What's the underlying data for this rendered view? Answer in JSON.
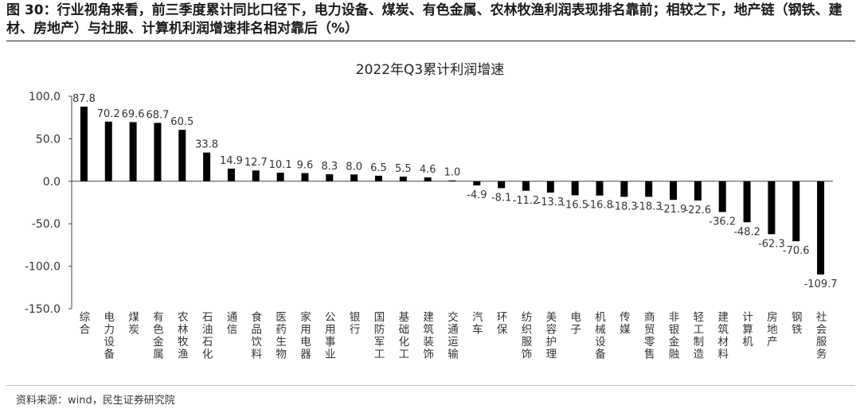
{
  "figure": {
    "title": "图 30：行业视角来看，前三季度累计同比口径下，电力设备、煤炭、有色金属、农林牧渔利润表现排名靠前；相较之下，地产链（钢铁、建材、房地产）与社服、计算机利润增速排名相对靠后（%）",
    "source": "资料来源：wind，民生证券研究院"
  },
  "chart_data": {
    "type": "bar",
    "title": "2022年Q3累计利润增速",
    "xlabel": "",
    "ylabel": "",
    "ylim": [
      -150,
      100
    ],
    "yticks": [
      100,
      50,
      0,
      -50,
      -100,
      -150
    ],
    "ytick_labels": [
      "100.0",
      "50.0",
      "0.0",
      "-50.0",
      "-100.0",
      "-150.0"
    ],
    "grid": false,
    "legend": "none",
    "bar_color": "#000000",
    "categories": [
      "综合",
      "电力设备",
      "煤炭",
      "有色金属",
      "农林牧渔",
      "石油石化",
      "通信",
      "食品饮料",
      "医药生物",
      "家用电器",
      "公用事业",
      "银行",
      "国防军工",
      "基础化工",
      "建筑装饰",
      "交通运输",
      "汽车",
      "环保",
      "纺织服饰",
      "美容护理",
      "电子",
      "机械设备",
      "传媒",
      "商贸零售",
      "非银金融",
      "轻工制造",
      "建筑材料",
      "计算机",
      "房地产",
      "钢铁",
      "社会服务"
    ],
    "values": [
      87.8,
      70.2,
      69.6,
      68.7,
      60.5,
      33.8,
      14.9,
      12.7,
      10.1,
      9.6,
      8.3,
      8.0,
      6.5,
      5.5,
      4.6,
      1.0,
      -4.9,
      -8.1,
      -11.2,
      -13.3,
      -16.5,
      -16.8,
      -18.3,
      -18.3,
      -21.9,
      -22.6,
      -36.2,
      -48.2,
      -62.3,
      -70.6,
      -109.7
    ],
    "value_labels": [
      "87.8",
      "70.2",
      "69.6",
      "68.7",
      "60.5",
      "33.8",
      "14.9",
      "12.7",
      "10.1",
      "9.6",
      "8.3",
      "8.0",
      "6.5",
      "5.5",
      "4.6",
      "1.0",
      "-4.9",
      "-8.1",
      "-11.2",
      "-13.3",
      "-16.5",
      "-16.8",
      "-18.3",
      "-18.3",
      "-21.9",
      "-22.6",
      "-36.2",
      "-48.2",
      "-62.3",
      "-70.6",
      "-109.7"
    ]
  }
}
